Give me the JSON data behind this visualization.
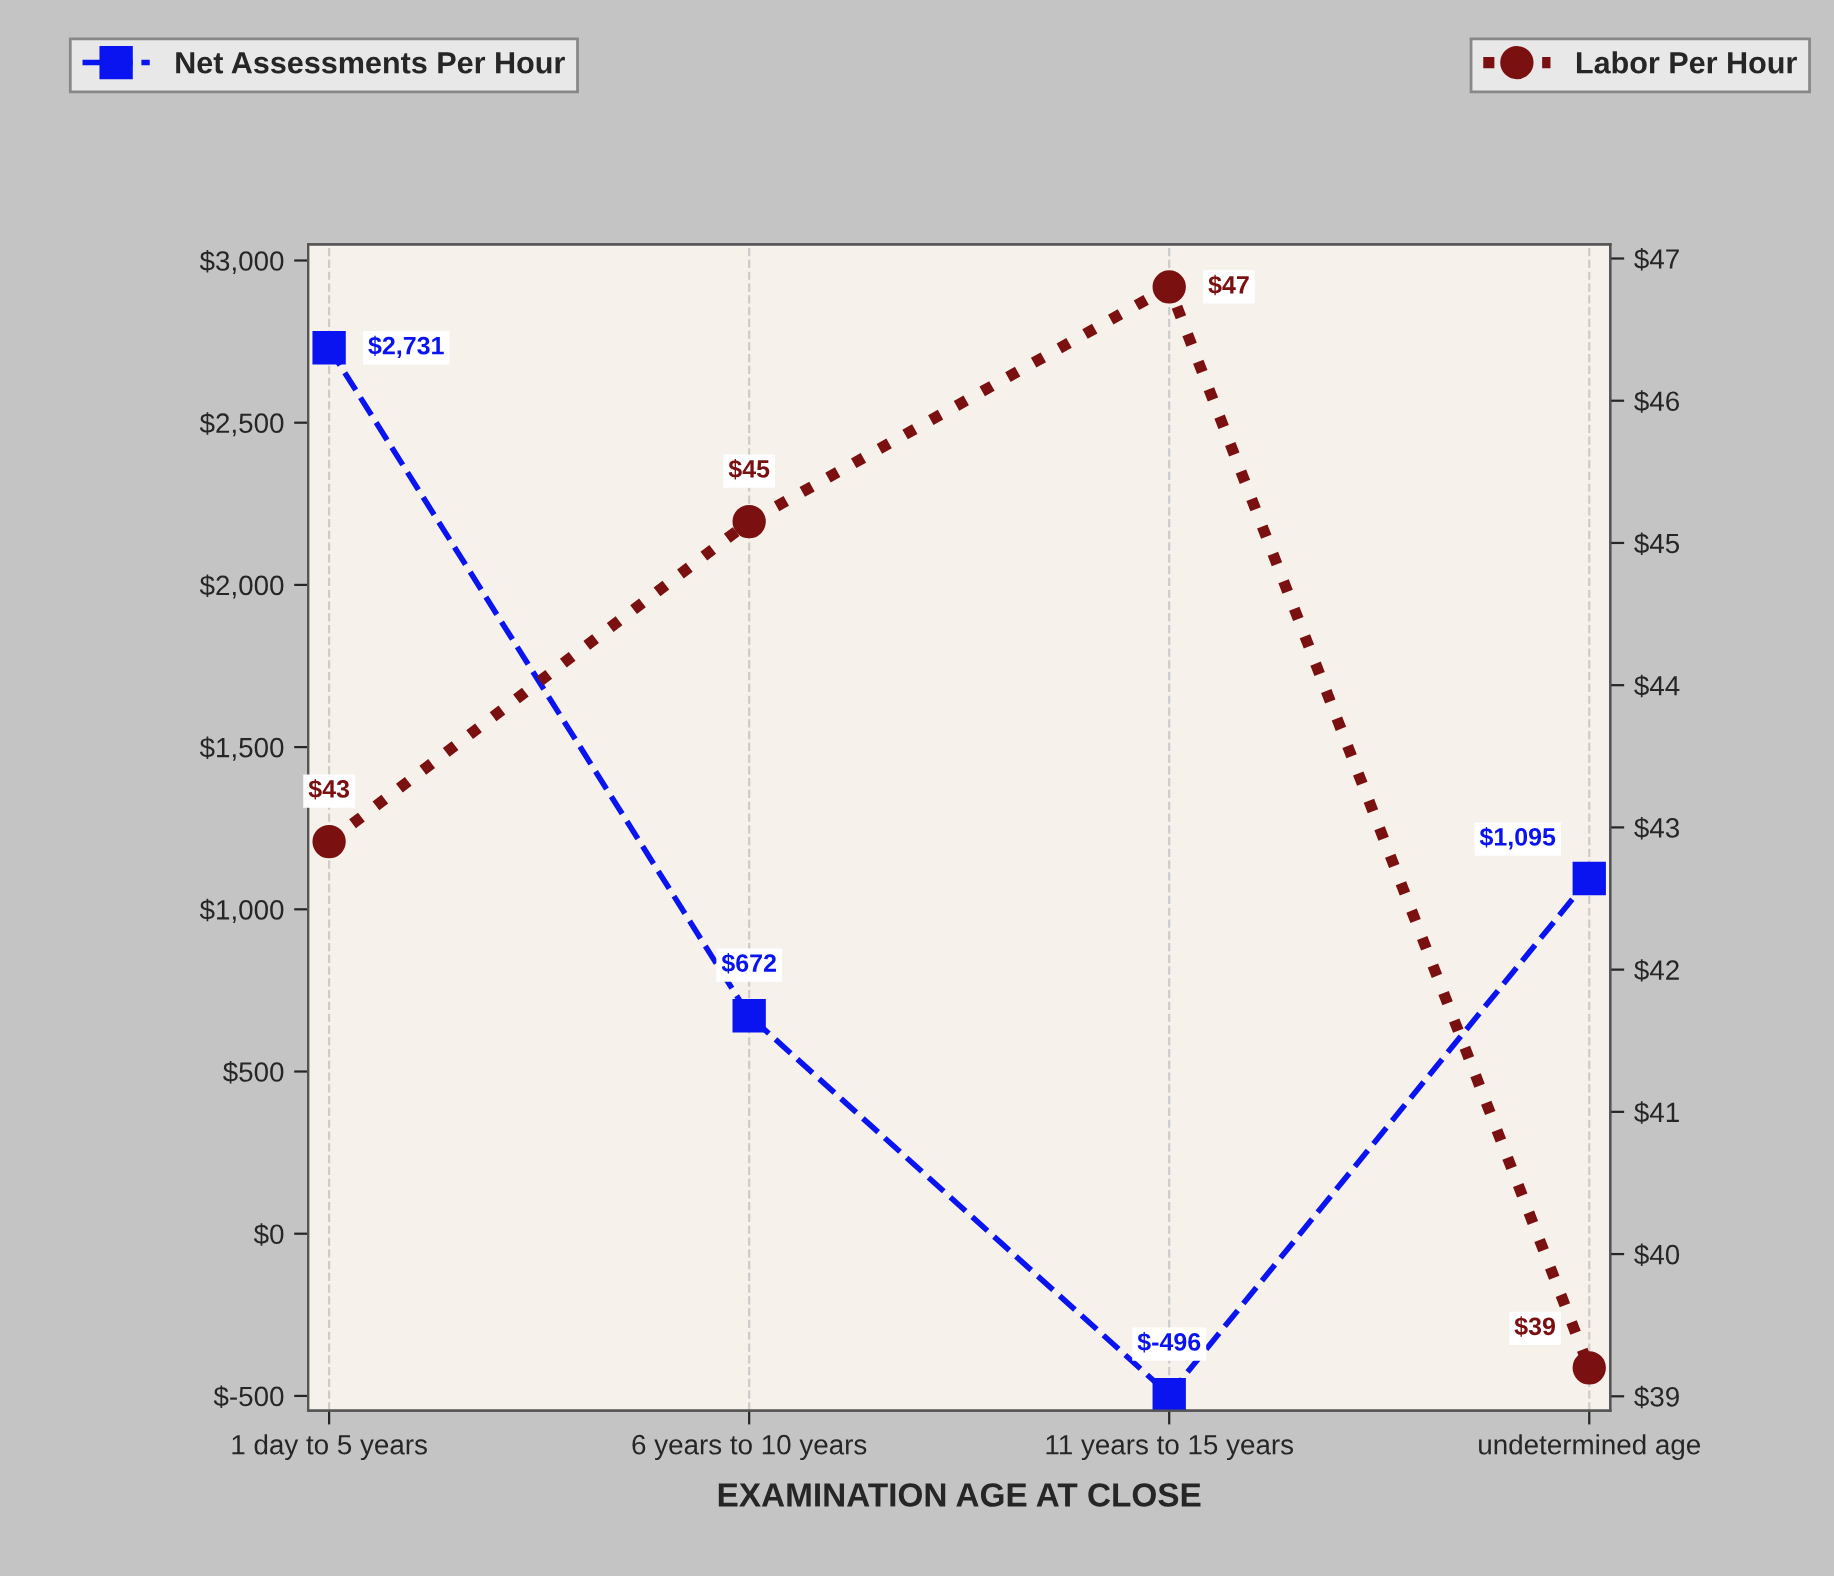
{
  "chart_data": {
    "type": "line",
    "xlabel": "EXAMINATION AGE AT CLOSE",
    "categories": [
      "1 day to 5 years",
      "6 years to 10 years",
      "11 years to 15 years",
      "undetermined age"
    ],
    "series": [
      {
        "name": "Net Assessments Per Hour",
        "color": "#0a14f0",
        "values": [
          2731,
          672,
          -496,
          1095
        ],
        "value_labels": [
          "$2,731",
          "$672",
          "$-496",
          "$1,095"
        ],
        "marker": "square",
        "line_style": "dashed"
      },
      {
        "name": "Labor Per Hour",
        "color": "#7a1010",
        "axis": "y2",
        "values": [
          42.9,
          45.15,
          46.8,
          39.2
        ],
        "value_labels": [
          "$43",
          "$45",
          "$47",
          "$39"
        ],
        "marker": "circle",
        "line_style": "dotted"
      }
    ],
    "ylim": [
      -545,
      3050
    ],
    "yticks": [
      {
        "value": -500,
        "label": "$-500"
      },
      {
        "value": 0,
        "label": "$0"
      },
      {
        "value": 500,
        "label": "$500"
      },
      {
        "value": 1000,
        "label": "$1,000"
      },
      {
        "value": 1500,
        "label": "$1,500"
      },
      {
        "value": 2000,
        "label": "$2,000"
      },
      {
        "value": 2500,
        "label": "$2,500"
      },
      {
        "value": 3000,
        "label": "$3,000"
      }
    ],
    "y2lim": [
      38.9,
      47.1
    ],
    "y2ticks": [
      {
        "value": 39,
        "label": "$39"
      },
      {
        "value": 40,
        "label": "$40"
      },
      {
        "value": 41,
        "label": "$41"
      },
      {
        "value": 42,
        "label": "$42"
      },
      {
        "value": 43,
        "label": "$43"
      },
      {
        "value": 44,
        "label": "$44"
      },
      {
        "value": 45,
        "label": "$45"
      },
      {
        "value": 46,
        "label": "$46"
      },
      {
        "value": 47,
        "label": "$47"
      }
    ],
    "grid": "x",
    "legend": "top"
  }
}
